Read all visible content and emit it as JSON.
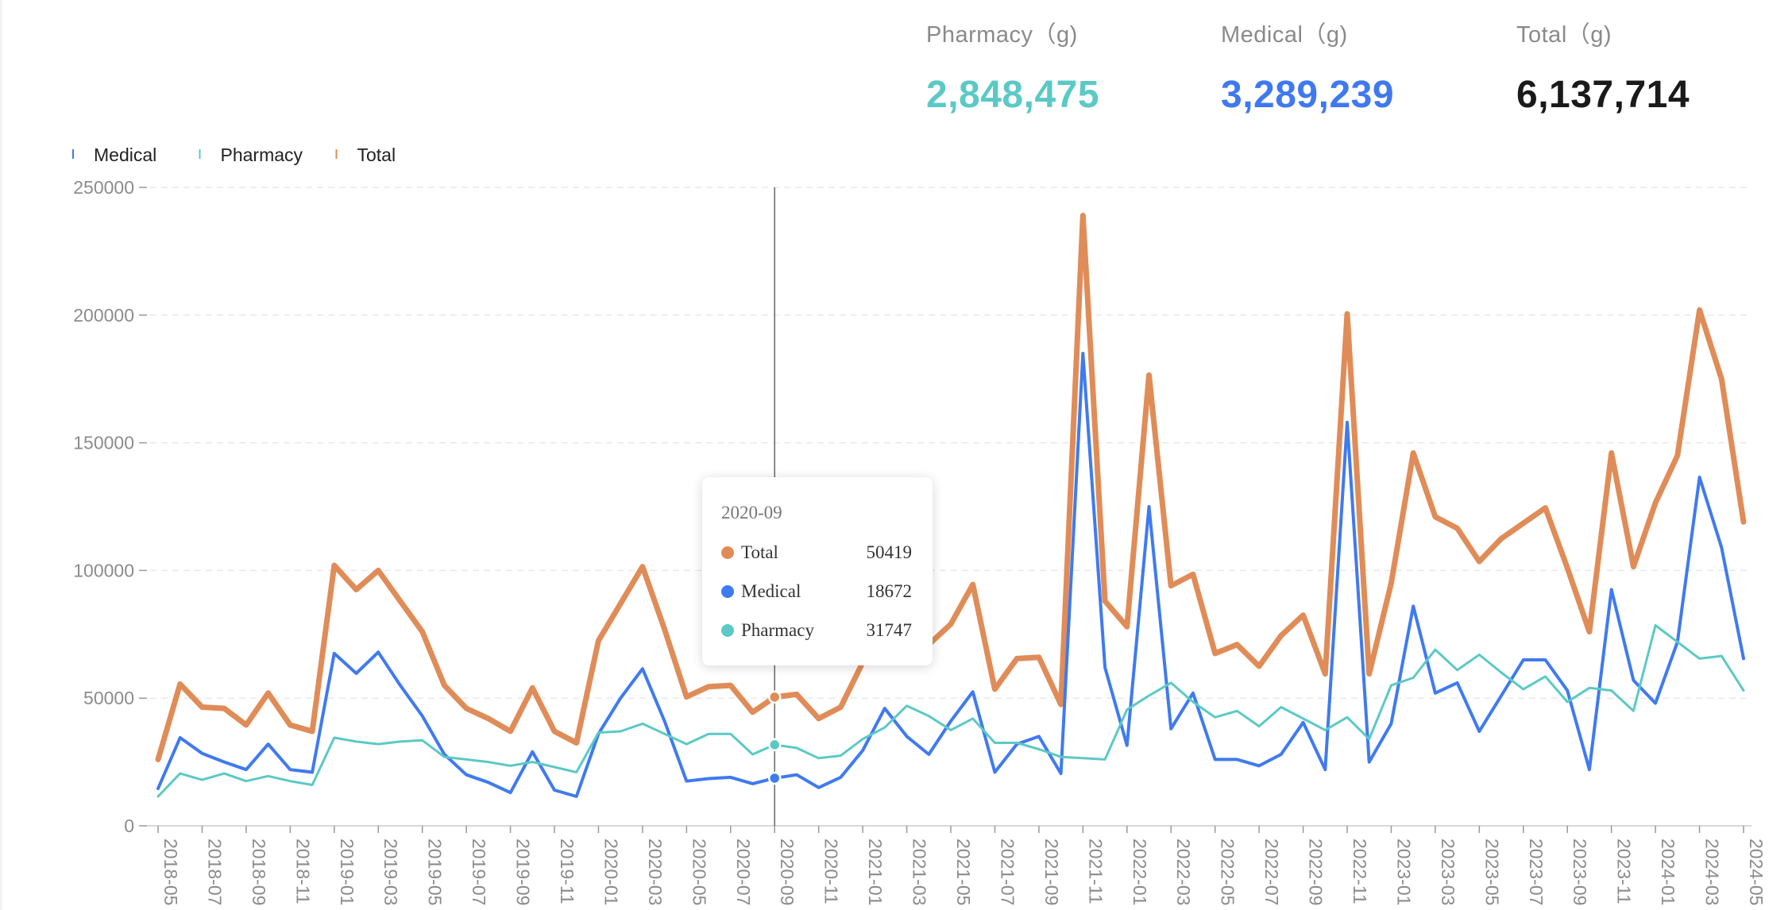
{
  "stats": [
    {
      "label": "Pharmacy（g)",
      "value": "2,848,475",
      "color": "#5bc9c5"
    },
    {
      "label": "Medical（g)",
      "value": "3,289,239",
      "color": "#3f78f0"
    },
    {
      "label": "Total（g)",
      "value": "6,137,714",
      "color": "#1a1a1a"
    }
  ],
  "colors": {
    "Medical": "#3f7af0",
    "Pharmacy": "#5bc9c5",
    "Total": "#e08c58",
    "axis": "#999999",
    "grid": "#e8e8e8"
  },
  "tooltip": {
    "title": "2020-09",
    "rows": [
      {
        "name": "Total",
        "value": "50419",
        "color": "#e08c58"
      },
      {
        "name": "Medical",
        "value": "18672",
        "color": "#3f7af0"
      },
      {
        "name": "Pharmacy",
        "value": "31747",
        "color": "#5bc9c5"
      }
    ]
  },
  "chart_data": {
    "type": "line",
    "ylim": [
      0,
      250000
    ],
    "y_ticks": [
      0,
      50000,
      100000,
      150000,
      200000,
      250000
    ],
    "grid": "horizontal dashed",
    "legend_position": "top-left",
    "x_tick_labels": [
      "2018-05",
      "2018-07",
      "2018-09",
      "2018-11",
      "2019-01",
      "2019-03",
      "2019-05",
      "2019-07",
      "2019-09",
      "2019-11",
      "2020-01",
      "2020-03",
      "2020-05",
      "2020-07",
      "2020-09",
      "2020-11",
      "2021-01",
      "2021-03",
      "2021-05",
      "2021-07",
      "2021-09",
      "2021-11",
      "2022-01",
      "2022-03",
      "2022-05",
      "2022-07",
      "2022-09",
      "2022-11",
      "2023-01",
      "2023-03",
      "2023-05",
      "2023-07",
      "2023-09",
      "2023-11",
      "2024-01",
      "2024-03",
      "2024-05"
    ],
    "x": [
      "2018-05",
      "2018-06",
      "2018-07",
      "2018-08",
      "2018-09",
      "2018-10",
      "2018-11",
      "2018-12",
      "2019-01",
      "2019-02",
      "2019-03",
      "2019-04",
      "2019-05",
      "2019-06",
      "2019-07",
      "2019-08",
      "2019-09",
      "2019-10",
      "2019-11",
      "2019-12",
      "2020-01",
      "2020-02",
      "2020-03",
      "2020-04",
      "2020-05",
      "2020-06",
      "2020-07",
      "2020-08",
      "2020-09",
      "2020-10",
      "2020-11",
      "2020-12",
      "2021-01",
      "2021-02",
      "2021-03",
      "2021-04",
      "2021-05",
      "2021-06",
      "2021-07",
      "2021-08",
      "2021-09",
      "2021-10",
      "2021-11",
      "2021-12",
      "2022-01",
      "2022-02",
      "2022-03",
      "2022-04",
      "2022-05",
      "2022-06",
      "2022-07",
      "2022-08",
      "2022-09",
      "2022-10",
      "2022-11",
      "2022-12",
      "2023-01",
      "2023-02",
      "2023-03",
      "2023-04",
      "2023-05",
      "2023-06",
      "2023-07",
      "2023-08",
      "2023-09",
      "2023-10",
      "2023-11",
      "2023-12",
      "2024-01",
      "2024-02",
      "2024-03",
      "2024-04",
      "2024-05"
    ],
    "series": [
      {
        "name": "Medical",
        "values": [
          14600,
          34500,
          28400,
          25000,
          22000,
          32000,
          22000,
          21000,
          67500,
          59700,
          68000,
          55000,
          43000,
          28000,
          20000,
          17000,
          13000,
          29000,
          14000,
          11500,
          36000,
          50000,
          61500,
          41000,
          17500,
          18500,
          19000,
          16500,
          18672,
          20000,
          15000,
          19000,
          29500,
          46000,
          35000,
          28000,
          41000,
          52500,
          21000,
          32000,
          35000,
          20500,
          185000,
          62000,
          31500,
          125000,
          38000,
          52000,
          26000,
          26000,
          23500,
          28000,
          40500,
          22000,
          158000,
          25000,
          40000,
          86000,
          52000,
          56000,
          37000,
          51000,
          65000,
          65000,
          53000,
          22000,
          92500,
          57000,
          48000,
          72000,
          136500,
          109000,
          65500
        ]
      },
      {
        "name": "Pharmacy",
        "values": [
          11500,
          20500,
          18000,
          20500,
          17500,
          19500,
          17500,
          16000,
          34500,
          33000,
          32000,
          33000,
          33500,
          27000,
          26000,
          25000,
          23500,
          25000,
          23000,
          21000,
          36500,
          37000,
          40000,
          36000,
          32000,
          36000,
          36000,
          28000,
          31747,
          30500,
          26500,
          27500,
          34000,
          38500,
          47000,
          43000,
          37500,
          42000,
          32500,
          32500,
          30000,
          27000,
          26500,
          26000,
          45500,
          51000,
          56000,
          48500,
          42500,
          45000,
          39000,
          46500,
          42000,
          37500,
          42500,
          34000,
          55000,
          58000,
          69000,
          61000,
          67000,
          60000,
          53500,
          58500,
          48500,
          54000,
          53000,
          45000,
          78500,
          72000,
          65500,
          66500,
          53000
        ]
      },
      {
        "name": "Total",
        "values": [
          26000,
          55500,
          46500,
          46000,
          39500,
          52000,
          39500,
          37000,
          102000,
          92500,
          100000,
          88000,
          76000,
          55000,
          46000,
          42000,
          37000,
          54000,
          37000,
          32500,
          72500,
          87000,
          101500,
          77000,
          50500,
          54500,
          55000,
          44500,
          50419,
          51500,
          42000,
          46500,
          64000,
          84500,
          82000,
          71000,
          79000,
          94500,
          53500,
          65500,
          66000,
          47500,
          239000,
          88000,
          78000,
          176500,
          94000,
          98500,
          67500,
          71000,
          62500,
          74500,
          82500,
          59500,
          200500,
          59500,
          95000,
          146000,
          121000,
          116500,
          103500,
          112500,
          118500,
          124500,
          101000,
          76000,
          146000,
          101500,
          126500,
          145000,
          202000,
          175000,
          119000
        ]
      }
    ]
  }
}
